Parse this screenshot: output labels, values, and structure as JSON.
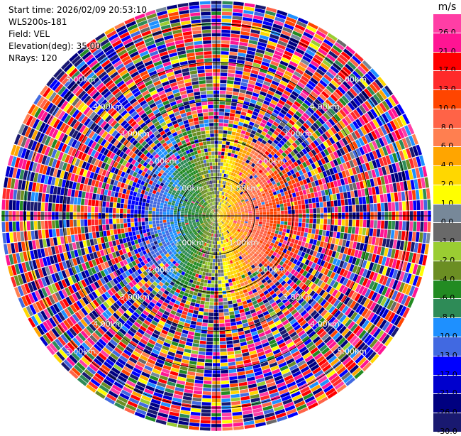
{
  "header": {
    "start_time": "Start time: 2026/02/09 20:53:10",
    "device": "WLS200s-181",
    "field": "Field: VEL",
    "elevation": "Elevation(deg): 35.00",
    "nrays": "NRays: 120"
  },
  "colorbar": {
    "unit": "m/s",
    "labels": [
      "26.0",
      "21.0",
      "17.0",
      "13.0",
      "10.0",
      "8.0",
      "6.0",
      "4.0",
      "2.0",
      "1.0",
      "0.0",
      "-1.0",
      "-2.0",
      "-4.0",
      "-6.0",
      "-8.0",
      "-10.0",
      "-13.0",
      "-17.0",
      "-21.0",
      "-26.0",
      "-30.0"
    ],
    "colors": [
      "#ff3ea5",
      "#ff1493",
      "#ff0000",
      "#ff2a2a",
      "#ff4500",
      "#ff6347",
      "#ff7f50",
      "#ffa500",
      "#ffd700",
      "#ffff00",
      "#778899",
      "#696969",
      "#9acd32",
      "#6b8e23",
      "#228b22",
      "#2e8b57",
      "#1e90ff",
      "#4169e1",
      "#0000ff",
      "#0000cd",
      "#000080",
      "#191970"
    ]
  },
  "chart_data": {
    "type": "heatmap",
    "projection": "polar (PPI)",
    "field": "VEL",
    "units": "m/s",
    "nrays": 120,
    "elevation_deg": 35.0,
    "range_rings_km": [
      "1.00km",
      "2.00km",
      "3.00km",
      "4.00km",
      "5.00km"
    ],
    "color_levels": [
      26.0,
      21.0,
      17.0,
      13.0,
      10.0,
      8.0,
      6.0,
      4.0,
      2.0,
      1.0,
      0.0,
      -1.0,
      -2.0,
      -4.0,
      -6.0,
      -8.0,
      -10.0,
      -13.0,
      -17.0,
      -21.0,
      -26.0,
      -30.0
    ],
    "pattern": "positive (red/orange) velocities east of radar, negative (blue/green) west; outer ranges noisy"
  }
}
